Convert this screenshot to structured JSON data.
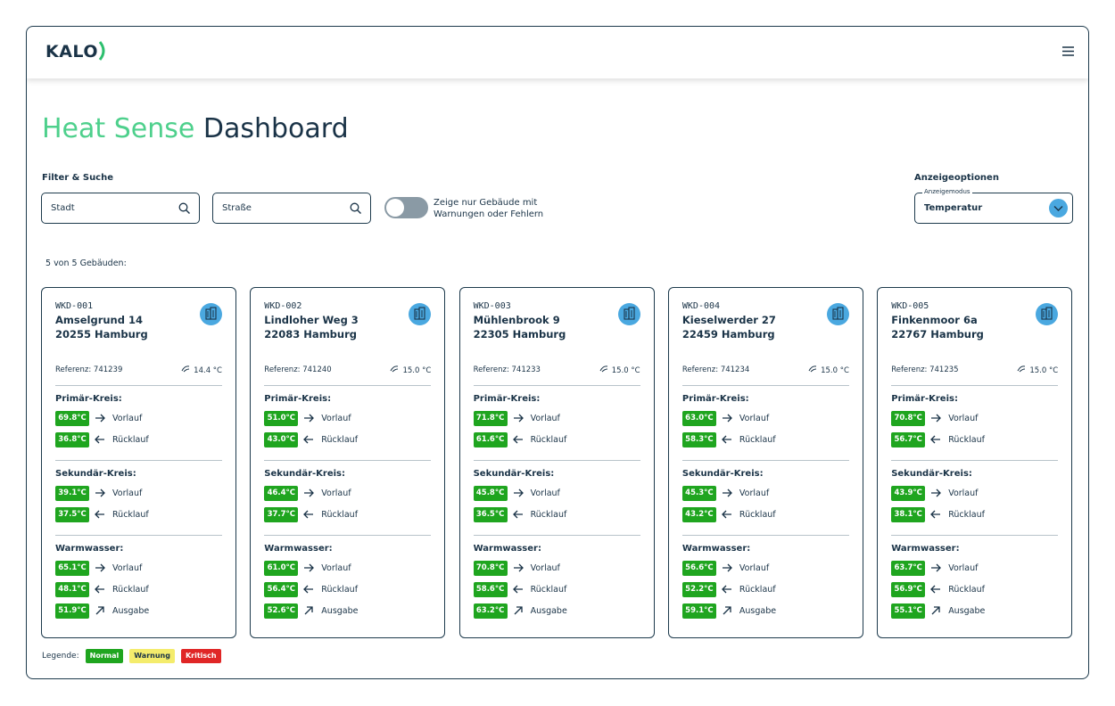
{
  "header": {
    "logo": "KALO"
  },
  "title": {
    "accent": "Heat Sense",
    "main": "Dashboard"
  },
  "filter": {
    "label": "Filter & Suche",
    "city": "Stadt",
    "street": "Straße",
    "toggle_label": "Zeige nur Gebäude mit Warnungen oder Fehlern"
  },
  "display": {
    "label": "Anzeigeoptionen",
    "mode_label": "Anzeigemodus",
    "mode_value": "Temperatur"
  },
  "count": "5 von 5 Gebäuden:",
  "circuits": [
    {
      "title": "Primär-Kreis:",
      "rows": [
        "Vorlauf",
        "Rücklauf"
      ]
    },
    {
      "title": "Sekundär-Kreis:",
      "rows": [
        "Vorlauf",
        "Rücklauf"
      ]
    },
    {
      "title": "Warmwasser:",
      "rows": [
        "Vorlauf",
        "Rücklauf",
        "Ausgabe"
      ]
    }
  ],
  "cards": [
    {
      "id": "WKD-001",
      "street": "Amselgrund 14",
      "city": "20255 Hamburg",
      "reference": "Referenz: 741239",
      "outdoor": "14.4 °C",
      "readings": [
        [
          "69.8°C",
          "36.8°C"
        ],
        [
          "39.1°C",
          "37.5°C"
        ],
        [
          "65.1°C",
          "48.1°C",
          "51.9°C"
        ]
      ]
    },
    {
      "id": "WKD-002",
      "street": "Lindloher Weg 3",
      "city": "22083 Hamburg",
      "reference": "Referenz: 741240",
      "outdoor": "15.0 °C",
      "readings": [
        [
          "51.0°C",
          "43.0°C"
        ],
        [
          "46.4°C",
          "37.7°C"
        ],
        [
          "61.0°C",
          "56.4°C",
          "52.6°C"
        ]
      ]
    },
    {
      "id": "WKD-003",
      "street": "Mühlenbrook 9",
      "city": "22305 Hamburg",
      "reference": "Referenz: 741233",
      "outdoor": "15.0 °C",
      "readings": [
        [
          "71.8°C",
          "61.6°C"
        ],
        [
          "45.8°C",
          "36.5°C"
        ],
        [
          "70.8°C",
          "58.6°C",
          "63.2°C"
        ]
      ]
    },
    {
      "id": "WKD-004",
      "street": "Kieselwerder 27",
      "city": "22459 Hamburg",
      "reference": "Referenz: 741234",
      "outdoor": "15.0 °C",
      "readings": [
        [
          "63.0°C",
          "58.3°C"
        ],
        [
          "45.3°C",
          "43.2°C"
        ],
        [
          "56.6°C",
          "52.2°C",
          "59.1°C"
        ]
      ]
    },
    {
      "id": "WKD-005",
      "street": "Finkenmoor 6a",
      "city": "22767 Hamburg",
      "reference": "Referenz: 741235",
      "outdoor": "15.0 °C",
      "readings": [
        [
          "70.8°C",
          "56.7°C"
        ],
        [
          "43.9°C",
          "38.1°C"
        ],
        [
          "63.7°C",
          "56.9°C",
          "55.1°C"
        ]
      ]
    }
  ],
  "legend": {
    "label": "Legende:",
    "items": [
      "Normal",
      "Warnung",
      "Kritisch"
    ]
  }
}
